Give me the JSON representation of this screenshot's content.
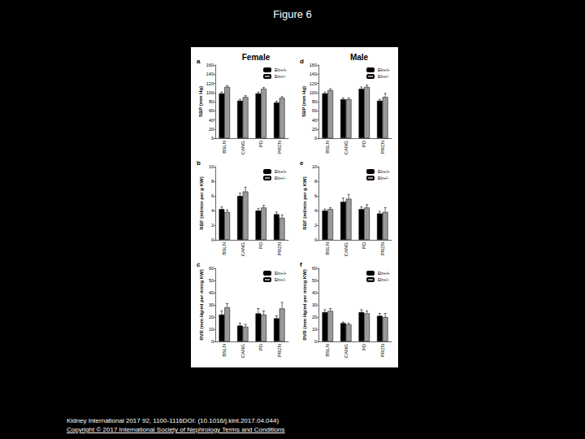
{
  "title": "Figure 6",
  "columns": [
    "Female",
    "Male"
  ],
  "footer": [
    "Kidney International 2017 92, 1100-1116DOI: (10.1016/j.kint.2017.04.044)",
    "Copyright © 2017 International Society of Nephrology Terms and Conditions"
  ],
  "chart_data": [
    {
      "type": "bar",
      "title": "a",
      "y_label": "SBP (mm Hg)",
      "categories": [
        "BSLN",
        "CANG",
        "PD",
        "PRZN"
      ],
      "series": [
        {
          "name": "Eln+/+",
          "color": "#000000",
          "values": [
            98,
            82,
            98,
            78
          ],
          "errors": [
            3,
            3,
            3,
            3
          ]
        },
        {
          "name": "Eln+/−",
          "color": "#999999",
          "values": [
            112,
            90,
            108,
            88
          ],
          "errors": [
            3,
            3,
            3,
            3
          ]
        }
      ],
      "ylim": [
        0,
        160
      ],
      "yticks": [
        0,
        20,
        40,
        60,
        80,
        100,
        120,
        140,
        160
      ],
      "legend": "top-right"
    },
    {
      "type": "bar",
      "title": "b",
      "y_label": "RBF (ml/min per g KW)",
      "categories": [
        "BSLN",
        "CANG",
        "PD",
        "PRZN"
      ],
      "series": [
        {
          "name": "Eln+/+",
          "color": "#000000",
          "values": [
            4.2,
            6.0,
            4.0,
            3.5
          ],
          "errors": [
            0.3,
            0.4,
            0.3,
            0.3
          ]
        },
        {
          "name": "Eln+/−",
          "color": "#999999",
          "values": [
            3.8,
            6.6,
            4.4,
            3.0
          ],
          "errors": [
            0.3,
            0.6,
            0.3,
            0.4
          ]
        }
      ],
      "ylim": [
        0,
        10
      ],
      "yticks": [
        0,
        2,
        4,
        6,
        8,
        10
      ],
      "legend": "top-right"
    },
    {
      "type": "bar",
      "title": "c",
      "y_label": "RVR (mm Hg/ml per min/g KW)",
      "categories": [
        "BSLN",
        "CANG",
        "PD",
        "PRZN"
      ],
      "series": [
        {
          "name": "Eln+/+",
          "color": "#000000",
          "values": [
            22,
            13,
            23,
            19
          ],
          "errors": [
            3,
            2,
            4,
            2
          ]
        },
        {
          "name": "Eln+/−",
          "color": "#999999",
          "values": [
            28,
            12,
            22,
            27
          ],
          "errors": [
            3,
            2,
            3,
            5
          ]
        }
      ],
      "ylim": [
        0,
        60
      ],
      "yticks": [
        0,
        10,
        20,
        30,
        40,
        50,
        60
      ],
      "legend": "top-right"
    },
    {
      "type": "bar",
      "title": "d",
      "y_label": "SBP (mm Hg)",
      "categories": [
        "BSLN",
        "CANG",
        "PD",
        "PRZN"
      ],
      "series": [
        {
          "name": "Eln+/+",
          "color": "#000000",
          "values": [
            98,
            85,
            108,
            82
          ],
          "errors": [
            3,
            3,
            4,
            3
          ]
        },
        {
          "name": "Eln+/−",
          "color": "#999999",
          "values": [
            105,
            85,
            112,
            90
          ],
          "errors": [
            3,
            3,
            4,
            8
          ]
        }
      ],
      "ylim": [
        0,
        160
      ],
      "yticks": [
        0,
        20,
        40,
        60,
        80,
        100,
        120,
        140,
        160
      ],
      "legend": "top-right"
    },
    {
      "type": "bar",
      "title": "e",
      "y_label": "RBF (ml/min per g KW)",
      "categories": [
        "BSLN",
        "CANG",
        "PD",
        "PRZN"
      ],
      "series": [
        {
          "name": "Eln+/+",
          "color": "#000000",
          "values": [
            4.0,
            5.2,
            4.2,
            3.6
          ],
          "errors": [
            0.2,
            0.5,
            0.3,
            0.3
          ]
        },
        {
          "name": "Eln+/−",
          "color": "#999999",
          "values": [
            4.2,
            5.6,
            4.4,
            3.8
          ],
          "errors": [
            0.2,
            0.6,
            0.4,
            0.6
          ]
        }
      ],
      "ylim": [
        0,
        10
      ],
      "yticks": [
        0,
        2,
        4,
        6,
        8,
        10
      ],
      "legend": "top-right"
    },
    {
      "type": "bar",
      "title": "f",
      "y_label": "RVR (mm Hg/ml per min/g KW)",
      "categories": [
        "BSLN",
        "CANG",
        "PD",
        "PRZN"
      ],
      "series": [
        {
          "name": "Eln+/+",
          "color": "#000000",
          "values": [
            24,
            15,
            24,
            21
          ],
          "errors": [
            2,
            1,
            2,
            2
          ]
        },
        {
          "name": "Eln+/−",
          "color": "#999999",
          "values": [
            25,
            14,
            23,
            20
          ],
          "errors": [
            2,
            1,
            2,
            3
          ]
        }
      ],
      "ylim": [
        0,
        60
      ],
      "yticks": [
        0,
        10,
        20,
        30,
        40,
        50,
        60
      ],
      "legend": "top-right"
    }
  ]
}
